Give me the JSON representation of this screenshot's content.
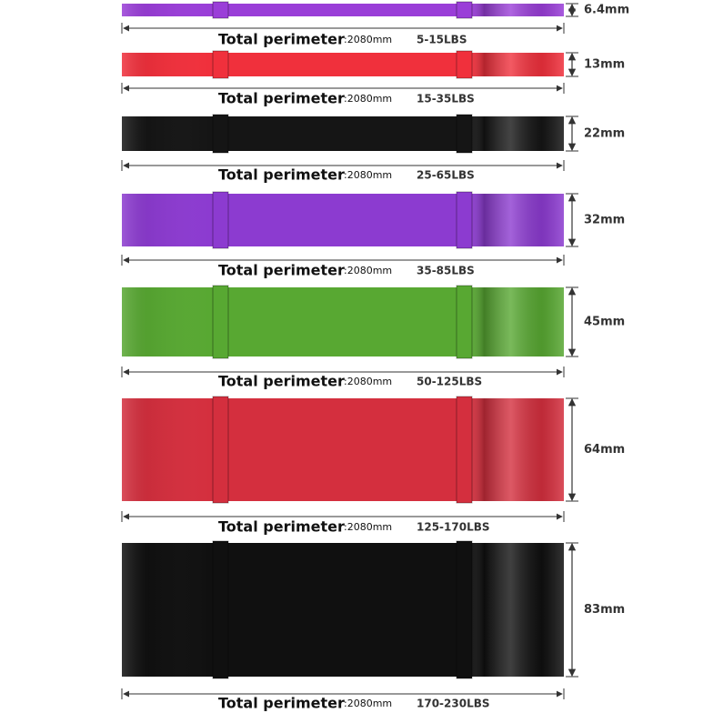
{
  "bands": [
    {
      "thickness": "6.4mm",
      "perimeter_label": "Total perimeter",
      "perimeter": ":2080mm",
      "resistance": "5-15LBS",
      "color": "#9a3ed8"
    },
    {
      "thickness": "13mm",
      "perimeter_label": "Total perimeter",
      "perimeter": ":2080mm",
      "resistance": "15-35LBS",
      "color": "#f0303c"
    },
    {
      "thickness": "22mm",
      "perimeter_label": "Total perimeter",
      "perimeter": ":2080mm",
      "resistance": "25-65LBS",
      "color": "#151515"
    },
    {
      "thickness": "32mm",
      "perimeter_label": "Total perimeter",
      "perimeter": ":2080mm",
      "resistance": "35-85LBS",
      "color": "#8c3bd0"
    },
    {
      "thickness": "45mm",
      "perimeter_label": "Total perimeter",
      "perimeter": ":2080mm",
      "resistance": "50-125LBS",
      "color": "#58a832"
    },
    {
      "thickness": "64mm",
      "perimeter_label": "Total perimeter",
      "perimeter": ":2080mm",
      "resistance": "125-170LBS",
      "color": "#d42f3e"
    },
    {
      "thickness": "83mm",
      "perimeter_label": "Total perimeter",
      "perimeter": ":2080mm",
      "resistance": "170-230LBS",
      "color": "#101010"
    }
  ]
}
